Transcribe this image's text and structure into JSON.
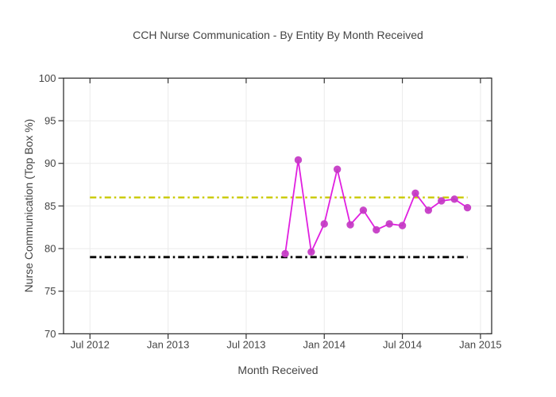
{
  "page": {
    "background": "#ffffff"
  },
  "chart_data": {
    "type": "line",
    "title": "CCH Nurse Communication - By Entity By Month Received",
    "xlabel": "Month Received",
    "ylabel": "Nurse Communication (Top Box %)",
    "categories": [
      "Oct 2013",
      "Nov 2013",
      "Dec 2013",
      "Jan 2014",
      "Feb 2014",
      "Mar 2014",
      "Apr 2014",
      "May 2014",
      "Jun 2014",
      "Jul 2014",
      "Aug 2014",
      "Sep 2014",
      "Oct 2014",
      "Nov 2014",
      "Dec 2014"
    ],
    "x_month_index": [
      15,
      16,
      17,
      18,
      19,
      20,
      21,
      22,
      23,
      24,
      25,
      26,
      27,
      28,
      29
    ],
    "series": [
      {
        "name": "nurse-communication-monthly",
        "values": [
          79.4,
          90.4,
          79.6,
          82.9,
          89.3,
          82.8,
          84.5,
          82.2,
          82.9,
          82.7,
          86.5,
          84.5,
          85.6,
          85.8,
          84.8
        ],
        "line_color": "#e020e0",
        "marker_color": "#c437c4",
        "marker": "circle"
      }
    ],
    "reference_lines": [
      {
        "name": "upper-reference",
        "value": 86,
        "color": "#c9c900",
        "style": "dashdot",
        "width": 2.4,
        "x_span": [
          0,
          29
        ]
      },
      {
        "name": "lower-reference",
        "value": 79,
        "color": "#000000",
        "style": "dashdot",
        "width": 2.8,
        "x_span": [
          0,
          29
        ]
      }
    ],
    "x_ticks": [
      {
        "pos": 0,
        "label": "Jul 2012"
      },
      {
        "pos": 6,
        "label": "Jan 2013"
      },
      {
        "pos": 12,
        "label": "Jul 2013"
      },
      {
        "pos": 18,
        "label": "Jan 2014"
      },
      {
        "pos": 24,
        "label": "Jul 2014"
      },
      {
        "pos": 30,
        "label": "Jan 2015"
      }
    ],
    "y_ticks": [
      {
        "pos": 70,
        "label": "70"
      },
      {
        "pos": 75,
        "label": "75"
      },
      {
        "pos": 80,
        "label": "80"
      },
      {
        "pos": 85,
        "label": "85"
      },
      {
        "pos": 90,
        "label": "90"
      },
      {
        "pos": 95,
        "label": "95"
      },
      {
        "pos": 100,
        "label": "100"
      }
    ],
    "xlim": [
      -2.03,
      30.86
    ],
    "ylim": [
      70,
      100
    ],
    "grid": true,
    "legend": "none",
    "colors": {
      "grid": "#ebebeb",
      "axis": "#333333",
      "text": "#444444",
      "background": "#ffffff"
    }
  }
}
